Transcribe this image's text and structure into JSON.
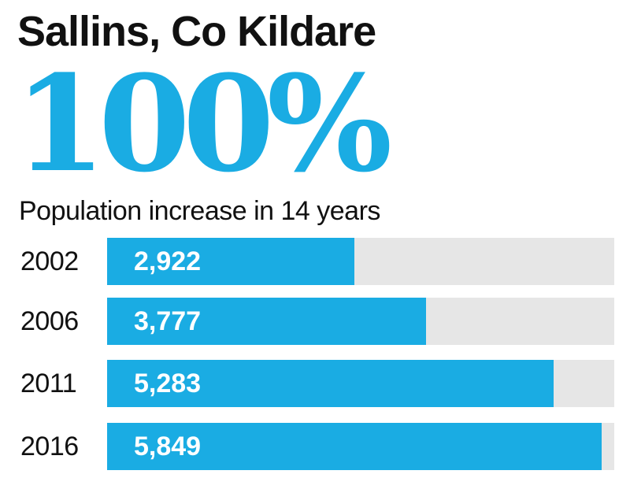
{
  "colors": {
    "accent": "#1aace3",
    "track": "#e6e6e6",
    "text": "#111111",
    "value_text": "#ffffff"
  },
  "chart_data": {
    "type": "bar",
    "orientation": "horizontal",
    "title": "Sallins, Co Kildare",
    "headline": "100%",
    "subtitle": "Population increase in 14 years",
    "categories": [
      "2002",
      "2006",
      "2011",
      "2016"
    ],
    "values": [
      2922,
      3777,
      5283,
      5849
    ],
    "value_labels": [
      "2,922",
      "3,777",
      "5,283",
      "5,849"
    ],
    "xlim": [
      0,
      6000
    ],
    "grid": false
  }
}
